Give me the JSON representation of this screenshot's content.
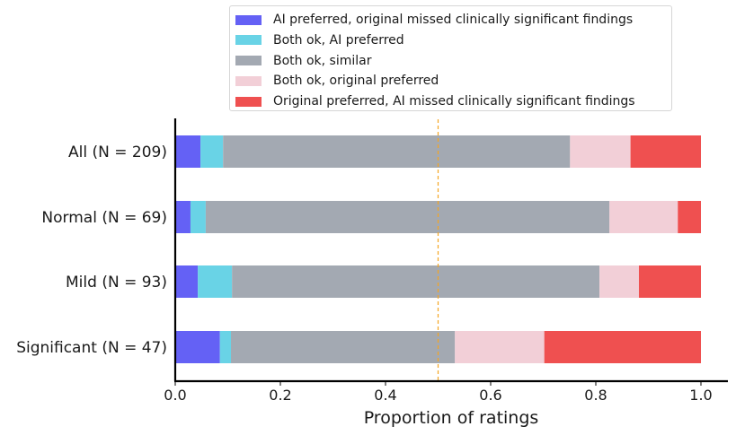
{
  "chart_data": {
    "type": "bar",
    "orientation": "horizontal",
    "stacked": true,
    "categories": [
      "All (N = 209)",
      "Normal (N = 69)",
      "Mild (N = 93)",
      "Significant (N = 47)"
    ],
    "series": [
      {
        "name": "AI preferred, original missed clinically significant findings",
        "color": "#6461f5",
        "values": [
          0.048,
          0.029,
          0.043,
          0.085
        ]
      },
      {
        "name": "Both ok, AI preferred",
        "color": "#69d3e6",
        "values": [
          0.043,
          0.029,
          0.065,
          0.021
        ]
      },
      {
        "name": "Both ok, similar",
        "color": "#a3a9b2",
        "values": [
          0.66,
          0.768,
          0.699,
          0.426
        ]
      },
      {
        "name": "Both ok, original preferred",
        "color": "#f2cfd7",
        "values": [
          0.115,
          0.13,
          0.075,
          0.17
        ]
      },
      {
        "name": "Original preferred, AI missed clinically significant findings",
        "color": "#ef5050",
        "values": [
          0.134,
          0.044,
          0.118,
          0.298
        ]
      }
    ],
    "xlabel": "Proportion of ratings",
    "xlim": [
      0,
      1.0
    ],
    "xticks": [
      "0.0",
      "0.2",
      "0.4",
      "0.6",
      "0.8",
      "1.0"
    ],
    "reference_line": {
      "x": 0.5,
      "color": "#f5a623",
      "style": "dashed"
    },
    "legend_position": "top",
    "grid": false
  }
}
